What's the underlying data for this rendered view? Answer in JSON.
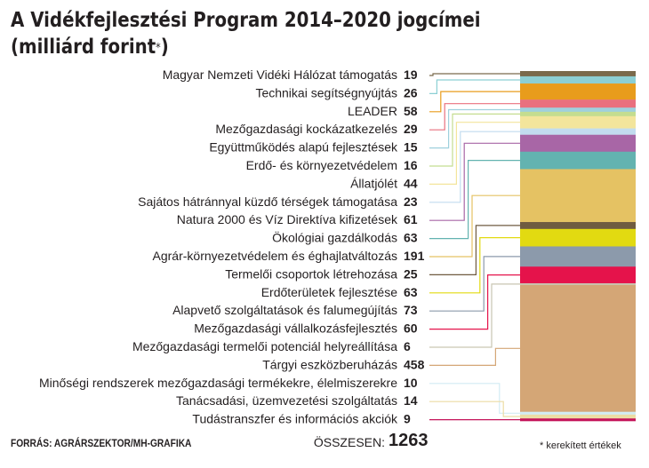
{
  "title_line1": "A Vidékfejlesztési Program 2014–2020 jogcímei",
  "title_line2": "(milliárd forint",
  "title_star": "*",
  "title_close": ")",
  "source": "FORRÁS: AGRÁRSZEKTOR/MH-GRAFIKA",
  "total_label": "ÖSSZESEN:",
  "total_value": "1263",
  "footnote": "* kerekített értékek",
  "chart_data": {
    "type": "stacked-bar",
    "title": "A Vidékfejlesztési Program 2014–2020 jogcímei (milliárd forint*)",
    "unit": "milliárd forint",
    "total": 1263,
    "items": [
      {
        "label": "Magyar Nemzeti Vidéki Hálózat támogatás",
        "value": 19,
        "color": "#7a6a4c"
      },
      {
        "label": "Technikai segítségnyújtás",
        "value": 26,
        "color": "#8ccfd4"
      },
      {
        "label": "LEADER",
        "value": 58,
        "color": "#e89c1c"
      },
      {
        "label": "Mezőgazdasági kockázatkezelés",
        "value": 29,
        "color": "#e9707e"
      },
      {
        "label": "Együttműködés alapú fejlesztések",
        "value": 15,
        "color": "#9fd0dd"
      },
      {
        "label": "Erdő- és környezetvédelem",
        "value": 16,
        "color": "#c4dd90"
      },
      {
        "label": "Állatjólét",
        "value": 44,
        "color": "#f3e59c"
      },
      {
        "label": "Sajátos hátránnyal küzdő térségek támogatása",
        "value": 23,
        "color": "#c2dcef"
      },
      {
        "label": "Natura 2000 és Víz Direktíva kifizetések",
        "value": 61,
        "color": "#a866a6"
      },
      {
        "label": "Ökológiai gazdálkodás",
        "value": 63,
        "color": "#63b3b0"
      },
      {
        "label": "Agrár-környezetvédelem és éghajlatváltozás",
        "value": 191,
        "color": "#e5c263"
      },
      {
        "label": "Termelői csoportok létrehozása",
        "value": 25,
        "color": "#6f5b40"
      },
      {
        "label": "Erdőterületek fejlesztése",
        "value": 63,
        "color": "#e2da11"
      },
      {
        "label": "Alapvető szolgáltatások és falumegújítás",
        "value": 73,
        "color": "#8c9aab"
      },
      {
        "label": "Mezőgazdasági vállalkozásfejlesztés",
        "value": 60,
        "color": "#e5134b"
      },
      {
        "label": "Mezőgazdasági termelői potenciál helyreállítása",
        "value": 6,
        "color": "#c9c6b2"
      },
      {
        "label": "Tárgyi eszközberuházás",
        "value": 458,
        "color": "#d4a676"
      },
      {
        "label": "Minőségi rendszerek mezőgazdasági termékekre, élelmiszerekre",
        "value": 10,
        "color": "#d2ecf3"
      },
      {
        "label": "Tanácsadási, üzemvezetési szolgáltatás",
        "value": 14,
        "color": "#ecdca4"
      },
      {
        "label": "Tudástranszfer és információs akciók",
        "value": 9,
        "color": "#c4145a"
      }
    ]
  }
}
